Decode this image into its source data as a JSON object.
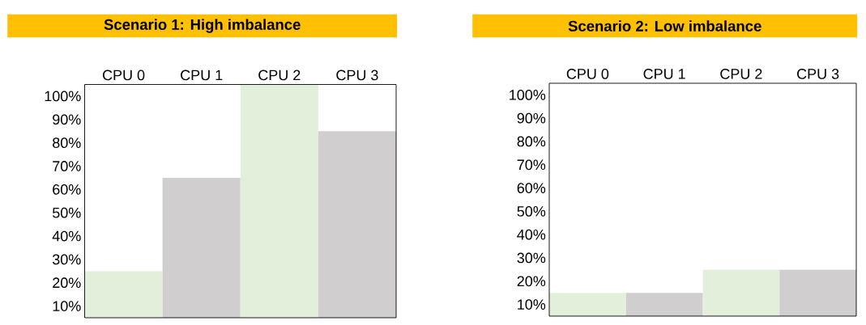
{
  "chart_data": [
    {
      "type": "bar",
      "title": "Scenario 1: High imbalance",
      "categories": [
        "CPU 0",
        "CPU 1",
        "CPU 2",
        "CPU 3"
      ],
      "values": [
        25,
        65,
        105,
        85
      ],
      "colors": [
        "#e2efda",
        "#d0cece",
        "#e2efda",
        "#d0cece"
      ],
      "ylim": [
        5,
        105
      ],
      "yticks": [
        {
          "value": 10,
          "label": "10%"
        },
        {
          "value": 20,
          "label": "20%"
        },
        {
          "value": 30,
          "label": "30%"
        },
        {
          "value": 40,
          "label": "40%"
        },
        {
          "value": 50,
          "label": "50%"
        },
        {
          "value": 60,
          "label": "60%"
        },
        {
          "value": 70,
          "label": "70%"
        },
        {
          "value": 80,
          "label": "80%"
        },
        {
          "value": 90,
          "label": "90%"
        },
        {
          "value": 100,
          "label": "100%"
        }
      ]
    },
    {
      "type": "bar",
      "title": "Scenario 2: Low imbalance",
      "categories": [
        "CPU 0",
        "CPU 1",
        "CPU 2",
        "CPU 3"
      ],
      "values": [
        15,
        15,
        25,
        25
      ],
      "colors": [
        "#e2efda",
        "#d0cece",
        "#e2efda",
        "#d0cece"
      ],
      "ylim": [
        5,
        105
      ],
      "yticks": [
        {
          "value": 10,
          "label": "10%"
        },
        {
          "value": 20,
          "label": "20%"
        },
        {
          "value": 30,
          "label": "30%"
        },
        {
          "value": 40,
          "label": "40%"
        },
        {
          "value": 50,
          "label": "50%"
        },
        {
          "value": 60,
          "label": "60%"
        },
        {
          "value": 70,
          "label": "70%"
        },
        {
          "value": 80,
          "label": "80%"
        },
        {
          "value": 90,
          "label": "90%"
        },
        {
          "value": 100,
          "label": "100%"
        }
      ]
    }
  ]
}
